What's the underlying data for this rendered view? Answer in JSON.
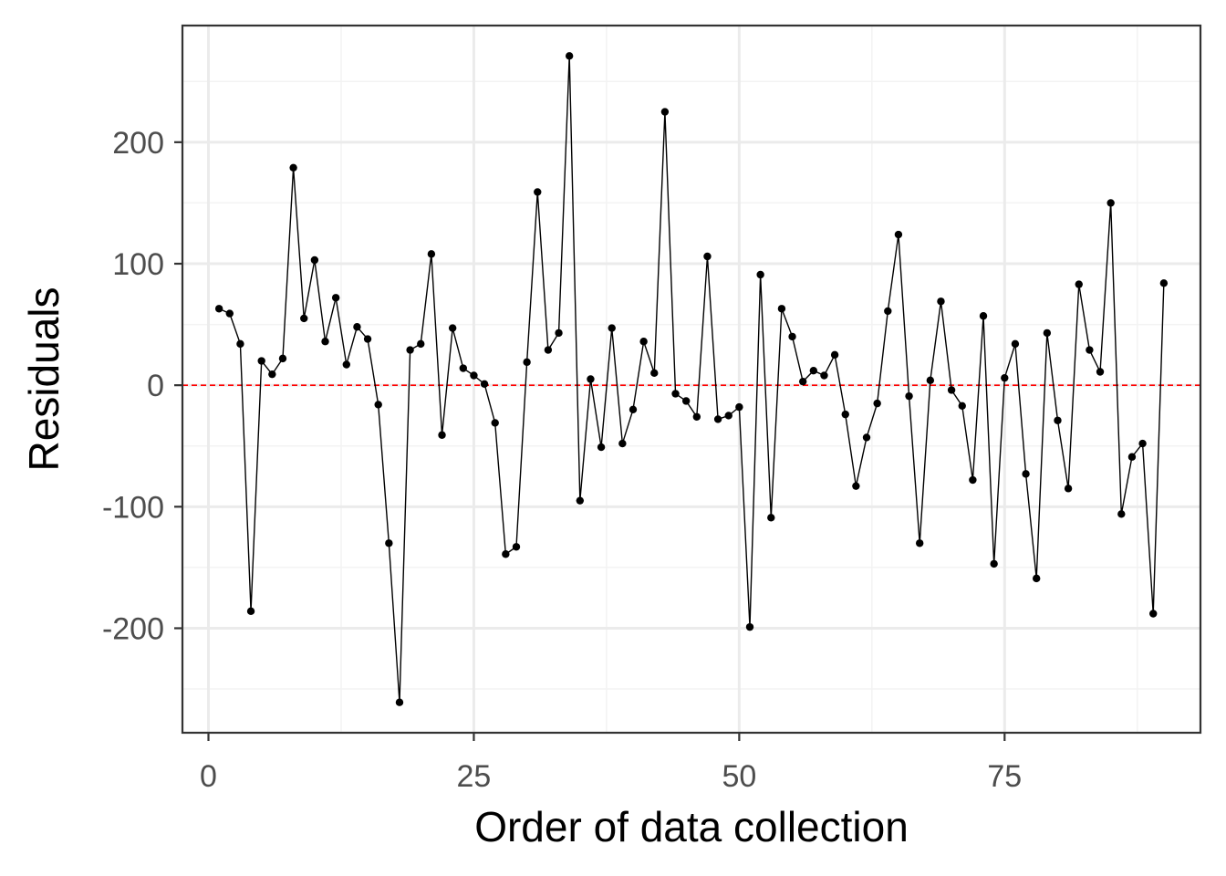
{
  "chart_data": {
    "type": "line",
    "title": "",
    "xlabel": "Order of data collection",
    "ylabel": "Residuals",
    "xlim": [
      -2.45,
      93.45
    ],
    "ylim": [
      -286,
      296
    ],
    "x_ticks": [
      0,
      25,
      50,
      75
    ],
    "y_ticks": [
      -200,
      -100,
      0,
      100,
      200
    ],
    "x_tick_labels": [
      "0",
      "25",
      "50",
      "75"
    ],
    "y_tick_labels": [
      "-200",
      "-100",
      "0",
      "100",
      "200"
    ],
    "grid": true,
    "reference_line": {
      "y": 0,
      "style": "dashed",
      "color": "#ff0000"
    },
    "series": [
      {
        "marker": "point",
        "color": "#000000",
        "x": [
          1,
          2,
          3,
          4,
          5,
          6,
          7,
          8,
          9,
          10,
          11,
          12,
          13,
          14,
          15,
          16,
          17,
          18,
          19,
          20,
          21,
          22,
          23,
          24,
          25,
          26,
          27,
          28,
          29,
          30,
          31,
          32,
          33,
          34,
          35,
          36,
          37,
          38,
          39,
          40,
          41,
          42,
          43,
          44,
          45,
          46,
          47,
          48,
          49,
          50,
          51,
          52,
          53,
          54,
          55,
          56,
          57,
          58,
          59,
          60,
          61,
          62,
          63,
          64,
          65,
          66,
          67,
          68,
          69,
          70,
          71,
          72,
          73,
          74,
          75,
          76,
          77,
          78,
          79,
          80,
          81,
          82,
          83,
          84,
          85,
          86,
          87,
          88,
          89,
          90
        ],
        "values": [
          63,
          59,
          34,
          -186,
          20,
          9,
          22,
          179,
          55,
          103,
          36,
          72,
          17,
          48,
          38,
          -16,
          -130,
          -261,
          29,
          34,
          108,
          -41,
          47,
          14,
          8,
          1,
          -31,
          -139,
          -133,
          19,
          159,
          29,
          43,
          271,
          -95,
          5,
          -51,
          47,
          -48,
          -20,
          36,
          10,
          225,
          -7,
          -13,
          -26,
          106,
          -28,
          -25,
          -18,
          -199,
          91,
          -109,
          63,
          40,
          3,
          12,
          8,
          25,
          -24,
          -83,
          -43,
          -15,
          61,
          124,
          -9,
          -130,
          4,
          69,
          -4,
          -17,
          -78,
          57,
          -147,
          6,
          34,
          -73,
          -159,
          43,
          -29,
          -85,
          83,
          29,
          11,
          150,
          -106,
          -59,
          -48,
          -188,
          84
        ]
      }
    ],
    "colors": {
      "panel_border": "#333333",
      "grid_major": "#ebebeb",
      "grid_minor": "#f3f3f3",
      "series": "#000000",
      "zero_line": "#ff0000"
    }
  }
}
